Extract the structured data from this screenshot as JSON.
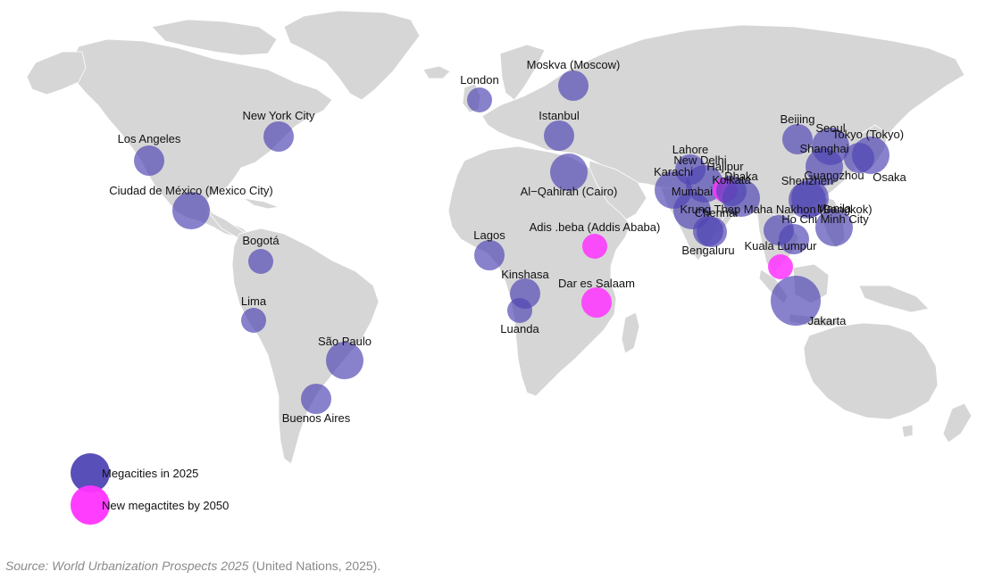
{
  "colors": {
    "land": "#d6d6d6",
    "megacity_2025": "#5046b4",
    "new_megacity_2050": "#ff33ff",
    "label": "#111111",
    "source": "#8a8a8a"
  },
  "legend": {
    "megacities_2025": "Megacities in 2025",
    "new_megacities_2050": "New megactites by 2050"
  },
  "source": {
    "prefix": "Source: ",
    "title": "World Urbanization Prospects 2025",
    "suffix": " (United Nations, 2025)."
  },
  "cities": [
    {
      "label": "Los Angeles",
      "category": "megacity_2025",
      "size": "medium"
    },
    {
      "label": "New York City",
      "category": "megacity_2025",
      "size": "medium"
    },
    {
      "label": "Ciudad de México (Mexico City)",
      "category": "megacity_2025",
      "size": "large"
    },
    {
      "label": "Bogotá",
      "category": "megacity_2025",
      "size": "small"
    },
    {
      "label": "Lima",
      "category": "megacity_2025",
      "size": "small"
    },
    {
      "label": "São Paulo",
      "category": "megacity_2025",
      "size": "large"
    },
    {
      "label": "Buenos Aires",
      "category": "megacity_2025",
      "size": "medium"
    },
    {
      "label": "London",
      "category": "megacity_2025",
      "size": "small"
    },
    {
      "label": "Moskva (Moscow)",
      "category": "megacity_2025",
      "size": "medium"
    },
    {
      "label": "Istanbul",
      "category": "megacity_2025",
      "size": "medium"
    },
    {
      "label": "Al−Qahirah (Cairo)",
      "category": "megacity_2025",
      "size": "large"
    },
    {
      "label": "Lagos",
      "category": "megacity_2025",
      "size": "medium"
    },
    {
      "label": "Kinshasa",
      "category": "megacity_2025",
      "size": "medium"
    },
    {
      "label": "Luanda",
      "category": "megacity_2025",
      "size": "small"
    },
    {
      "label": "Adis .beba (Addis Ababa)",
      "category": "new_megacity_2050",
      "size": "small"
    },
    {
      "label": "Dar es Salaam",
      "category": "new_megacity_2050",
      "size": "medium"
    },
    {
      "label": "Lahore",
      "category": "megacity_2025",
      "size": "medium"
    },
    {
      "label": "New Delhi",
      "category": "megacity_2025",
      "size": "large"
    },
    {
      "label": "Karachi",
      "category": "megacity_2025",
      "size": "large"
    },
    {
      "label": "Hajipur",
      "category": "new_megacity_2050",
      "size": "small"
    },
    {
      "label": "Dhaka",
      "category": "megacity_2025",
      "size": "large"
    },
    {
      "label": "Kolkata",
      "category": "megacity_2025",
      "size": "medium"
    },
    {
      "label": "Mumbai",
      "category": "megacity_2025",
      "size": "large"
    },
    {
      "label": "Chennai",
      "category": "megacity_2025",
      "size": "medium"
    },
    {
      "label": "Bengaluru",
      "category": "megacity_2025",
      "size": "medium"
    },
    {
      "label": "Krung Thep Maha Nakhon (Bangkok)",
      "category": "megacity_2025",
      "size": "medium"
    },
    {
      "label": "Ho Chi Minh City",
      "category": "megacity_2025",
      "size": "medium"
    },
    {
      "label": "Kuala Lumpur",
      "category": "new_megacity_2050",
      "size": "small"
    },
    {
      "label": "Jakarta",
      "category": "megacity_2025",
      "size": "xlarge"
    },
    {
      "label": "Manila",
      "category": "megacity_2025",
      "size": "large"
    },
    {
      "label": "Beijing",
      "category": "megacity_2025",
      "size": "medium"
    },
    {
      "label": "Seoul",
      "category": "megacity_2025",
      "size": "large"
    },
    {
      "label": "Shanghai",
      "category": "megacity_2025",
      "size": "large"
    },
    {
      "label": "Tokyo (Tokyo)",
      "category": "megacity_2025",
      "size": "large"
    },
    {
      "label": "Osaka",
      "category": "megacity_2025",
      "size": "medium"
    },
    {
      "label": "Guangzhou",
      "category": "megacity_2025",
      "size": "large"
    },
    {
      "label": "Shenzhen",
      "category": "megacity_2025",
      "size": "large"
    }
  ]
}
